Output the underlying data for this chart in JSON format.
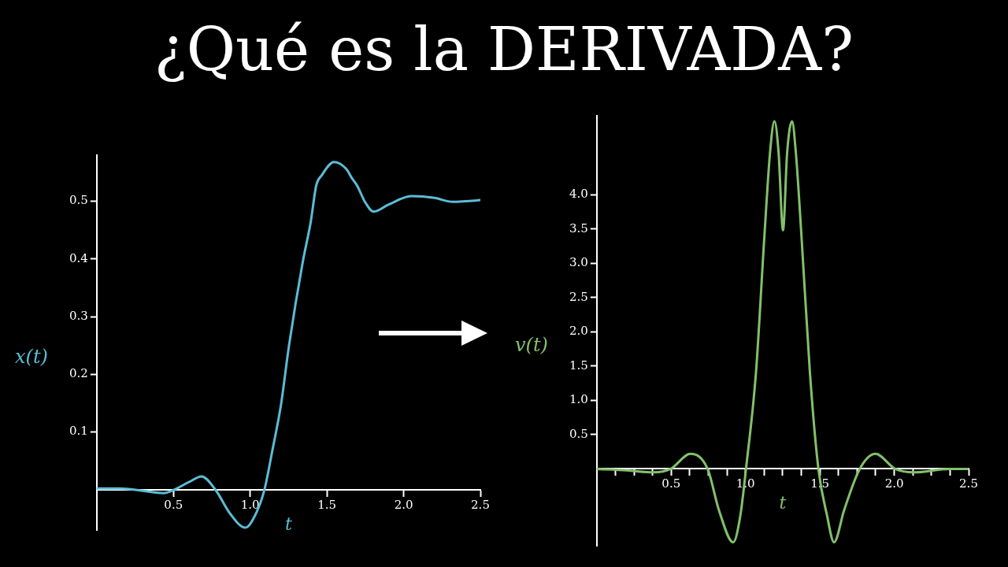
{
  "chart_data": [
    {
      "type": "line",
      "title": "¿Qué es la DERIVADA?",
      "xlabel": "t",
      "ylabel": "x(t)",
      "marker": "none",
      "x": [
        0,
        0.15,
        0.3,
        0.435,
        0.506,
        0.6,
        0.683,
        0.773,
        0.87,
        0.968,
        1.04,
        1.093,
        1.146,
        1.2,
        1.253,
        1.342,
        1.395,
        1.43,
        1.466,
        1.546,
        1.626,
        1.661,
        1.697,
        1.75,
        1.805,
        1.9,
        2.052,
        2.2,
        2.319,
        2.4,
        2.5
      ],
      "series": [
        {
          "color": "#5bbcd6",
          "values": [
            0.002,
            0.002,
            -0.002,
            -0.006,
            0,
            0.013,
            0.023,
            0,
            -0.042,
            -0.066,
            -0.04,
            0,
            0.07,
            0.146,
            0.25,
            0.394,
            0.465,
            0.527,
            0.545,
            0.568,
            0.556,
            0.541,
            0.527,
            0.498,
            0.482,
            0.494,
            0.509,
            0.506,
            0.499,
            0.5,
            0.502
          ]
        }
      ],
      "xlim": [
        0,
        2.5
      ],
      "ylim": [
        -0.07,
        0.58
      ],
      "xticks": [
        0.5,
        {
          "value": 1,
          "label": "1.0"
        },
        1.5,
        {
          "value": 2,
          "label": "2.0"
        },
        2.5
      ],
      "yticks": [
        0.1,
        0.2,
        0.3,
        0.4,
        0.5
      ]
    },
    {
      "type": "line",
      "xlabel": "t",
      "ylabel": "v(t)",
      "marker": "none",
      "x": [
        0,
        0.2,
        0.382,
        0.496,
        0.63,
        0.745,
        0.821,
        0.917,
        0.965,
        1.003,
        1.07,
        1.127,
        1.165,
        1.194,
        1.222,
        1.252,
        1.28,
        1.313,
        1.338,
        1.376,
        1.433,
        1.49,
        1.548,
        1.595,
        1.663,
        1.768,
        1.873,
        2.007,
        2.13,
        2.37,
        2.5
      ],
      "series": [
        {
          "color": "#83c06b",
          "values": [
            0,
            -0.02,
            -0.05,
            0,
            0.22,
            0,
            -0.6,
            -1.07,
            -0.68,
            0,
            1.4,
            3.4,
            4.62,
            5.07,
            4.62,
            3.48,
            4.62,
            5.07,
            4.62,
            3.4,
            1.4,
            0,
            -0.68,
            -1.07,
            -0.6,
            0,
            0.22,
            0,
            -0.05,
            0,
            0
          ]
        }
      ],
      "xlim": [
        0,
        2.5
      ],
      "ylim": [
        -1.12,
        5.15
      ],
      "xticks": [
        {
          "value": 0.125,
          "label": null
        },
        {
          "value": 0.25,
          "label": null
        },
        {
          "value": 0.375,
          "label": null
        },
        0.5,
        {
          "value": 0.625,
          "label": null
        },
        {
          "value": 0.75,
          "label": null
        },
        {
          "value": 0.875,
          "label": null
        },
        {
          "value": 1,
          "label": "1.0"
        },
        {
          "value": 1.125,
          "label": null
        },
        {
          "value": 1.25,
          "label": null
        },
        {
          "value": 1.375,
          "label": null
        },
        1.5,
        {
          "value": 1.625,
          "label": null
        },
        {
          "value": 1.75,
          "label": null
        },
        {
          "value": 1.875,
          "label": null
        },
        {
          "value": 2,
          "label": "2.0"
        },
        {
          "value": 2.125,
          "label": null
        },
        {
          "value": 2.25,
          "label": null
        },
        {
          "value": 2.375,
          "label": null
        },
        2.5
      ],
      "yticks": [
        0.5,
        {
          "value": 1,
          "label": "1.0"
        },
        1.5,
        {
          "value": 2,
          "label": "2.0"
        },
        2.5,
        {
          "value": 3,
          "label": "3.0"
        },
        3.5,
        {
          "value": 4,
          "label": "4.0"
        }
      ]
    }
  ]
}
